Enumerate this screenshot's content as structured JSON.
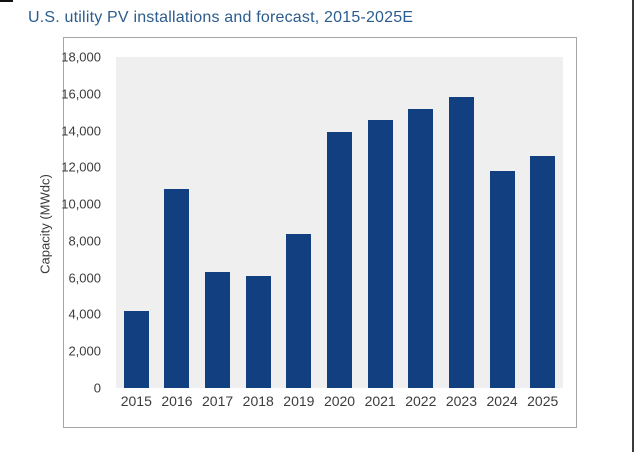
{
  "title": {
    "text": "U.S. utility PV installations and forecast, 2015-2025E",
    "color": "#2b5c8e"
  },
  "chart_data": {
    "type": "bar",
    "title": "U.S. utility PV installations and forecast, 2015-2025E",
    "categories": [
      "2015",
      "2016",
      "2017",
      "2018",
      "2019",
      "2020",
      "2021",
      "2022",
      "2023",
      "2024",
      "2025"
    ],
    "values": [
      4200,
      10800,
      6300,
      6100,
      8400,
      13900,
      14600,
      15200,
      15800,
      11800,
      12600
    ],
    "xlabel": "",
    "ylabel": "Capacity (MWdc)",
    "ylim": [
      0,
      18000
    ],
    "ytick_step": 2000,
    "ytick_labels": [
      "0",
      "2,000",
      "4,000",
      "6,000",
      "8,000",
      "10,000",
      "12,000",
      "14,000",
      "16,000",
      "18,000"
    ],
    "grid": false,
    "legend": "none",
    "bar_color": "#113f80",
    "plot_background": "#efefef"
  }
}
